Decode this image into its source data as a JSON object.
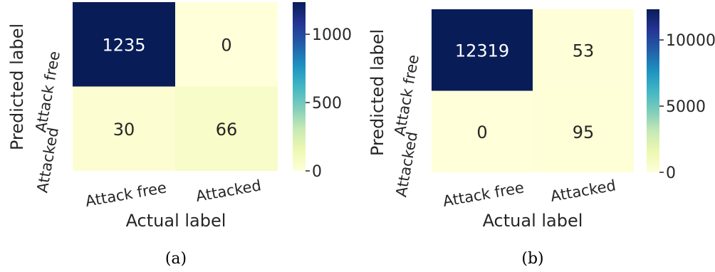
{
  "chart_data": [
    {
      "type": "heatmap",
      "caption": "(a)",
      "xlabel": "Actual label",
      "ylabel": "Predicted label",
      "x_categories": [
        "Attack free",
        "Attacked"
      ],
      "y_categories": [
        "Attack free",
        "Attacked"
      ],
      "values": [
        [
          1235,
          0
        ],
        [
          30,
          66
        ]
      ],
      "colorbar": {
        "min": 0,
        "max": 1235,
        "ticks": [
          0,
          500,
          1000
        ]
      },
      "colormap": "YlGnBu"
    },
    {
      "type": "heatmap",
      "caption": "(b)",
      "xlabel": "Actual label",
      "ylabel": "Predicted label",
      "x_categories": [
        "Attack free",
        "Attacked"
      ],
      "y_categories": [
        "Attack free",
        "Attacked"
      ],
      "values": [
        [
          12319,
          53
        ],
        [
          0,
          95
        ]
      ],
      "colorbar": {
        "min": 0,
        "max": 12319,
        "ticks": [
          0,
          5000,
          10000
        ]
      },
      "colormap": "YlGnBu"
    }
  ],
  "colors": {
    "ramp": [
      "#ffffd9",
      "#edf8b1",
      "#c7e9b4",
      "#7fcdbb",
      "#41b6c4",
      "#1d91c0",
      "#225ea8",
      "#253494",
      "#081d58"
    ],
    "text_dark": "#262626",
    "text_light": "#ffffff"
  }
}
